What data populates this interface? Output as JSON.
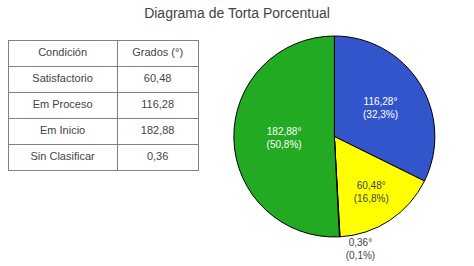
{
  "chart_data": [
    {
      "type": "table",
      "rows": [
        [
          "Condición",
          "Grados (°)"
        ],
        [
          "Satisfactorio",
          "60,48"
        ],
        [
          "Em Proceso",
          "116,28"
        ],
        [
          "Em Inicio",
          "182,88"
        ],
        [
          "Sin Clasificar",
          "0,36"
        ]
      ]
    },
    {
      "type": "pie",
      "title": "Diagrama de Torta Porcentual",
      "values": [
        116.28,
        60.48,
        0.36,
        182.88
      ],
      "value_labels": [
        "116,28°\n(32,3%)",
        "60,48°\n(16,8%)",
        "0,36°\n(0,1%)",
        "182,88°\n(50,8%)"
      ],
      "colors": [
        "#3355CC",
        "#FFFF00",
        "#DD1111",
        "#22AA22"
      ],
      "data_labels": true
    }
  ]
}
